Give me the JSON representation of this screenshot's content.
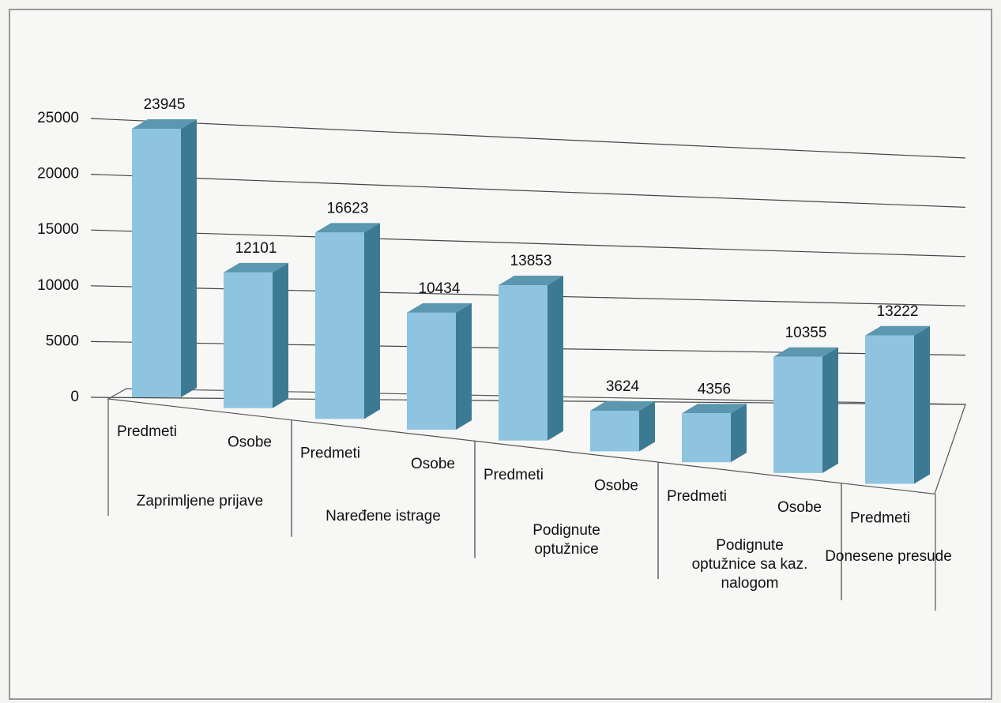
{
  "chart_data": {
    "type": "bar3d",
    "groups": [
      {
        "name": "Zaprimljene prijave",
        "categories": [
          "Predmeti",
          "Osobe"
        ],
        "values": [
          23945,
          12101
        ]
      },
      {
        "name": "Naređene istrage",
        "categories": [
          "Predmeti",
          "Osobe"
        ],
        "values": [
          16623,
          10434
        ]
      },
      {
        "name": "Podignute optužnice",
        "categories": [
          "Predmeti",
          "Osobe"
        ],
        "values": [
          13853,
          3624
        ]
      },
      {
        "name": "Podignute optužnice sa kaz. nalogom",
        "categories": [
          "Predmeti",
          "Osobe"
        ],
        "values": [
          4356,
          10355
        ]
      },
      {
        "name": "Donesene presude",
        "categories": [
          "Predmeti"
        ],
        "values": [
          13222
        ]
      }
    ],
    "color": "#8ec4e0",
    "ylim": [
      0,
      25000
    ],
    "yticks": [
      0,
      5000,
      10000,
      15000,
      20000,
      25000
    ],
    "grid": true
  }
}
